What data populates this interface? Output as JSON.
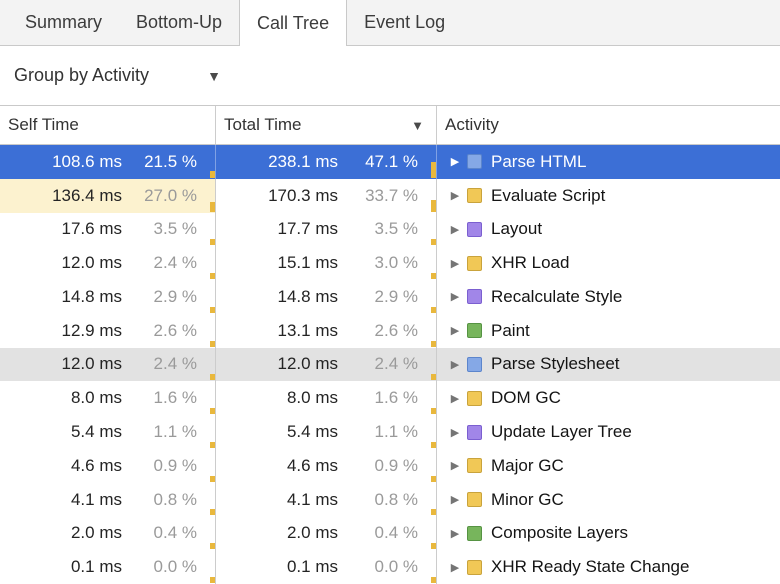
{
  "tabs": [
    {
      "label": "Summary",
      "selected": false
    },
    {
      "label": "Bottom-Up",
      "selected": false
    },
    {
      "label": "Call Tree",
      "selected": true
    },
    {
      "label": "Event Log",
      "selected": false
    }
  ],
  "toolbar": {
    "group_by": "Group by Activity"
  },
  "icons": {
    "disclosure": "▶",
    "sort_desc": "▼",
    "dropdown": "▼"
  },
  "table": {
    "columns": {
      "self_time": "Self Time",
      "total_time": "Total Time",
      "activity": "Activity"
    },
    "rows": [
      {
        "self_time": "108.6 ms",
        "self_percent": "21.5 %",
        "total_time": "238.1 ms",
        "total_percent": "47.1 %",
        "activity": "Parse HTML",
        "category": "loading",
        "state": "selected"
      },
      {
        "self_time": "136.4 ms",
        "self_percent": "27.0 %",
        "total_time": "170.3 ms",
        "total_percent": "33.7 %",
        "activity": "Evaluate Script",
        "category": "scripting",
        "state": "hotself"
      },
      {
        "self_time": "17.6 ms",
        "self_percent": "3.5 %",
        "total_time": "17.7 ms",
        "total_percent": "3.5 %",
        "activity": "Layout",
        "category": "rendering",
        "state": ""
      },
      {
        "self_time": "12.0 ms",
        "self_percent": "2.4 %",
        "total_time": "15.1 ms",
        "total_percent": "3.0 %",
        "activity": "XHR Load",
        "category": "scripting",
        "state": ""
      },
      {
        "self_time": "14.8 ms",
        "self_percent": "2.9 %",
        "total_time": "14.8 ms",
        "total_percent": "2.9 %",
        "activity": "Recalculate Style",
        "category": "rendering",
        "state": ""
      },
      {
        "self_time": "12.9 ms",
        "self_percent": "2.6 %",
        "total_time": "13.1 ms",
        "total_percent": "2.6 %",
        "activity": "Paint",
        "category": "painting",
        "state": ""
      },
      {
        "self_time": "12.0 ms",
        "self_percent": "2.4 %",
        "total_time": "12.0 ms",
        "total_percent": "2.4 %",
        "activity": "Parse Stylesheet",
        "category": "loading",
        "state": "hover"
      },
      {
        "self_time": "8.0 ms",
        "self_percent": "1.6 %",
        "total_time": "8.0 ms",
        "total_percent": "1.6 %",
        "activity": "DOM GC",
        "category": "scripting",
        "state": ""
      },
      {
        "self_time": "5.4 ms",
        "self_percent": "1.1 %",
        "total_time": "5.4 ms",
        "total_percent": "1.1 %",
        "activity": "Update Layer Tree",
        "category": "rendering",
        "state": ""
      },
      {
        "self_time": "4.6 ms",
        "self_percent": "0.9 %",
        "total_time": "4.6 ms",
        "total_percent": "0.9 %",
        "activity": "Major GC",
        "category": "scripting",
        "state": ""
      },
      {
        "self_time": "4.1 ms",
        "self_percent": "0.8 %",
        "total_time": "4.1 ms",
        "total_percent": "0.8 %",
        "activity": "Minor GC",
        "category": "scripting",
        "state": ""
      },
      {
        "self_time": "2.0 ms",
        "self_percent": "0.4 %",
        "total_time": "2.0 ms",
        "total_percent": "0.4 %",
        "activity": "Composite Layers",
        "category": "painting",
        "state": ""
      },
      {
        "self_time": "0.1 ms",
        "self_percent": "0.0 %",
        "total_time": "0.1 ms",
        "total_percent": "0.0 %",
        "activity": "XHR Ready State Change",
        "category": "scripting",
        "state": ""
      }
    ]
  },
  "colors": {
    "selection": "#3c6fd6",
    "hover_row": "#e2e2e2",
    "hot_self_bg": "#fcf2cf",
    "percent_bar": "#e9b83d",
    "categories": {
      "loading": {
        "fill": "#85a8e6",
        "border": "#5c85cc"
      },
      "scripting": {
        "fill": "#f1c856",
        "border": "#c9a33c"
      },
      "rendering": {
        "fill": "#a186e8",
        "border": "#7b5fd0"
      },
      "painting": {
        "fill": "#77b55c",
        "border": "#569343"
      }
    }
  }
}
